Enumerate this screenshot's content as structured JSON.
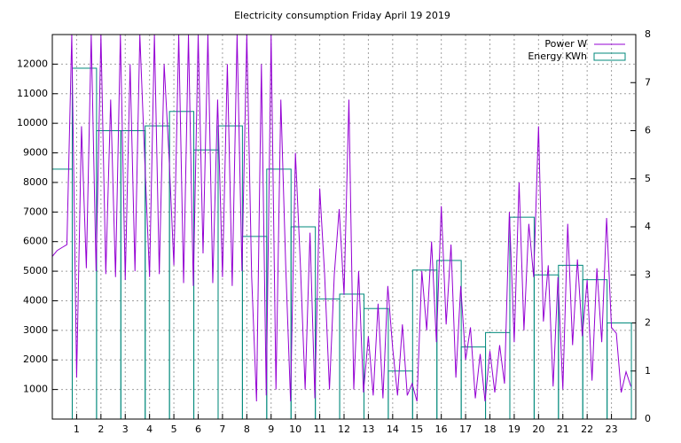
{
  "chart_data": {
    "type": "line",
    "title": "Electricity consumption Friday April 19 2019",
    "xlim": [
      0,
      24
    ],
    "xticks": [
      1,
      2,
      3,
      4,
      5,
      6,
      7,
      8,
      9,
      10,
      11,
      12,
      13,
      14,
      15,
      16,
      17,
      18,
      19,
      20,
      21,
      22,
      23
    ],
    "ylim": [
      0,
      13000
    ],
    "yticks": [
      1000,
      2000,
      3000,
      4000,
      5000,
      6000,
      7000,
      8000,
      9000,
      10000,
      11000,
      12000
    ],
    "y2lim": [
      0,
      8
    ],
    "y2ticks": [
      0,
      1,
      2,
      3,
      4,
      5,
      6,
      7,
      8
    ],
    "grid": true,
    "legend": "top-right",
    "series": [
      {
        "name": "Power W",
        "type": "line",
        "color": "#9400d3",
        "x": [
          0,
          0.2,
          0.4,
          0.6,
          0.8,
          1,
          1.2,
          1.4,
          1.6,
          1.8,
          2,
          2.2,
          2.4,
          2.6,
          2.8,
          3,
          3.2,
          3.4,
          3.6,
          3.8,
          4,
          4.2,
          4.4,
          4.6,
          4.8,
          5,
          5.2,
          5.4,
          5.6,
          5.8,
          6,
          6.2,
          6.4,
          6.6,
          6.8,
          7,
          7.2,
          7.4,
          7.6,
          7.8,
          8,
          8.2,
          8.4,
          8.6,
          8.8,
          9,
          9.2,
          9.4,
          9.6,
          9.8,
          10,
          10.2,
          10.4,
          10.6,
          10.8,
          11,
          11.2,
          11.4,
          11.6,
          11.8,
          12,
          12.2,
          12.4,
          12.6,
          12.8,
          13,
          13.2,
          13.4,
          13.6,
          13.8,
          14,
          14.2,
          14.4,
          14.6,
          14.8,
          15,
          15.2,
          15.4,
          15.6,
          15.8,
          16,
          16.2,
          16.4,
          16.6,
          16.8,
          17,
          17.2,
          17.4,
          17.6,
          17.8,
          18,
          18.2,
          18.4,
          18.6,
          18.8,
          19,
          19.2,
          19.4,
          19.6,
          19.8,
          20,
          20.2,
          20.4,
          20.6,
          20.8,
          21,
          21.2,
          21.4,
          21.6,
          21.8,
          22,
          22.2,
          22.4,
          22.6,
          22.8,
          23,
          23.2,
          23.4,
          23.6,
          23.8
        ],
        "values": [
          5500,
          5700,
          5800,
          5900,
          13000,
          1400,
          9900,
          5100,
          13000,
          5000,
          13000,
          4900,
          10800,
          4800,
          13000,
          4700,
          12000,
          5000,
          13000,
          8800,
          4800,
          13000,
          4900,
          12000,
          8900,
          5200,
          13000,
          4600,
          13000,
          4500,
          13000,
          5600,
          13000,
          4600,
          10800,
          4800,
          12000,
          4500,
          13000,
          5000,
          13000,
          4800,
          600,
          12000,
          800,
          13000,
          1000,
          10800,
          5200,
          600,
          9000,
          5300,
          1000,
          6300,
          700,
          7800,
          4900,
          1000,
          4900,
          7100,
          4200,
          10800,
          1000,
          5000,
          900,
          2800,
          800,
          3900,
          700,
          4500,
          2400,
          800,
          3200,
          800,
          1200,
          600,
          5000,
          3000,
          6000,
          2600,
          7200,
          3200,
          5900,
          1400,
          4500,
          2000,
          3100,
          700,
          2200,
          600,
          2300,
          900,
          2500,
          1200,
          7000,
          2600,
          8000,
          3000,
          6600,
          4800,
          9900,
          3300,
          5200,
          1100,
          4800,
          1000,
          6600,
          2500,
          5400,
          2800,
          4700,
          1300,
          5100,
          2600,
          6800,
          3100,
          2900,
          900,
          1600,
          1100
        ]
      },
      {
        "name": "Energy KWh",
        "type": "boxes",
        "axis": "y2",
        "color": "#00897b",
        "x": [
          0,
          0.82,
          1.82,
          2.82,
          3.82,
          4.82,
          5.82,
          6.82,
          7.82,
          8.82,
          9.82,
          10.82,
          11.82,
          12.82,
          13.82,
          14.82,
          15.82,
          16.82,
          17.82,
          18.82,
          19.82,
          20.82,
          21.82,
          22.82
        ],
        "values": [
          5.2,
          7.3,
          6.0,
          6.0,
          6.1,
          6.4,
          5.6,
          6.1,
          3.8,
          5.2,
          4.0,
          2.5,
          2.6,
          2.3,
          1.0,
          3.1,
          3.3,
          1.5,
          1.8,
          4.2,
          3.0,
          3.2,
          2.9,
          2.0
        ]
      }
    ]
  }
}
